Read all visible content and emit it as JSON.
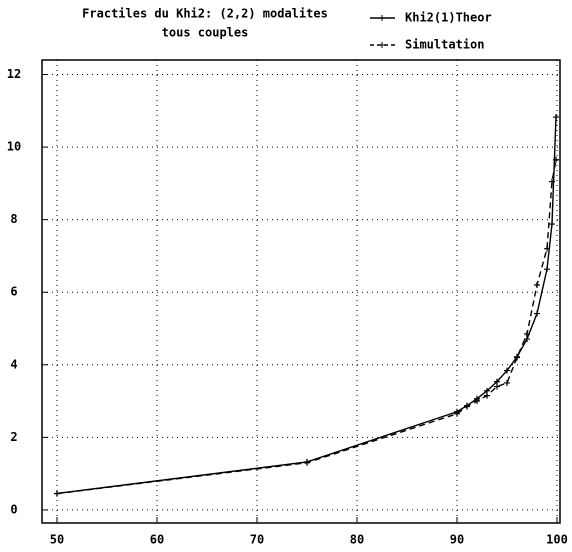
{
  "chart_data": {
    "type": "line",
    "title": "Fractiles du Khi2: (2,2) modalites",
    "subtitle": "tous couples",
    "series": [
      {
        "name": "Khi2(1)Theor",
        "color": "#000000",
        "dash": "solid",
        "x": [
          50,
          75,
          90,
          91,
          92,
          93,
          94,
          95,
          96,
          97,
          98,
          99,
          99.5,
          99.9
        ],
        "values": [
          0.455,
          1.323,
          2.706,
          2.874,
          3.065,
          3.283,
          3.537,
          3.841,
          4.218,
          4.709,
          5.412,
          6.635,
          7.879,
          10.828
        ]
      },
      {
        "name": "Simultation",
        "color": "#000000",
        "dash": "dashed",
        "x": [
          50,
          75,
          90,
          91,
          92,
          93,
          94,
          95,
          96,
          97,
          98,
          99,
          99.5,
          99.9
        ],
        "values": [
          0.45,
          1.3,
          2.65,
          2.85,
          3.0,
          3.15,
          3.4,
          3.5,
          4.2,
          4.85,
          6.2,
          7.2,
          9.05,
          9.65
        ]
      }
    ],
    "xlim": [
      48.5,
      100.3
    ],
    "ylim": [
      -0.36,
      12.4
    ],
    "xticks": [
      50,
      60,
      70,
      80,
      90,
      100
    ],
    "yticks": [
      0,
      2,
      4,
      6,
      8,
      10,
      12
    ],
    "grid": true,
    "legend": "top-right"
  }
}
